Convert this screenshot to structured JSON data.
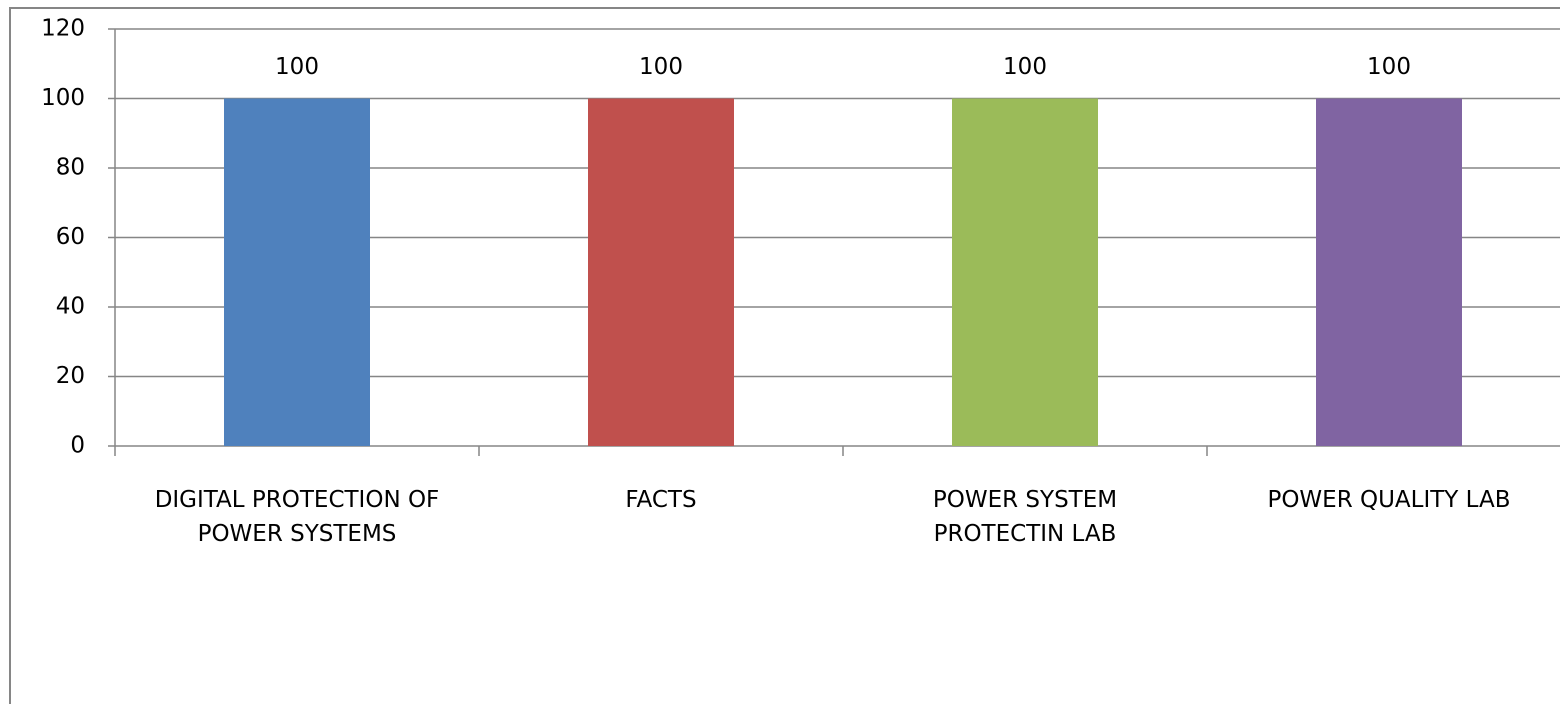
{
  "chart_data": {
    "type": "bar",
    "categories": [
      "DIGITAL PROTECTION OF\nPOWER SYSTEMS",
      "FACTS",
      "POWER SYSTEM\nPROTECTIN LAB",
      "POWER QUALITY LAB"
    ],
    "values": [
      100,
      100,
      100,
      100
    ],
    "colors": [
      "#4f81bd",
      "#c0504d",
      "#9bbb59",
      "#8064a2"
    ],
    "ylim": [
      0,
      120
    ],
    "yticks": [
      0,
      20,
      40,
      60,
      80,
      100,
      120
    ],
    "grid": true
  }
}
